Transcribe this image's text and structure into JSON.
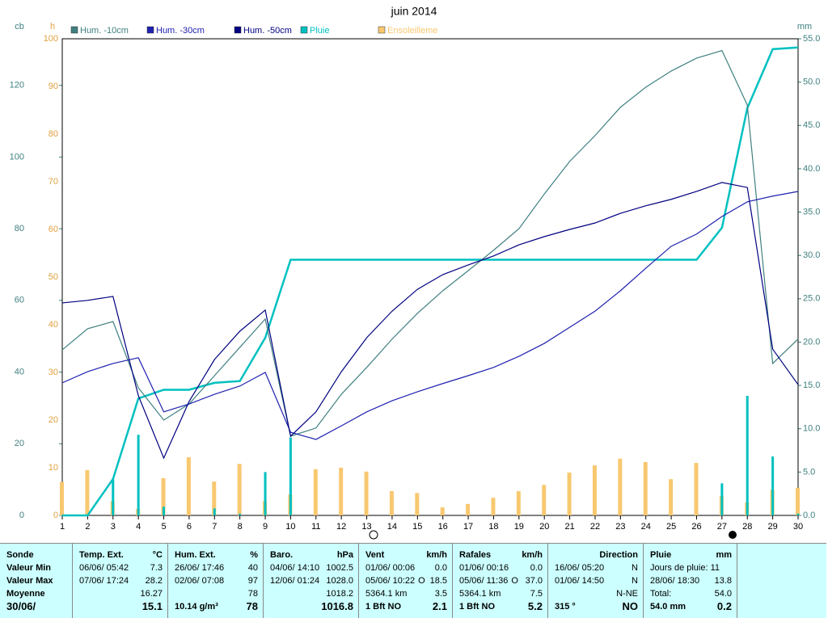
{
  "chart_data": {
    "type": "line",
    "title": "juin 2014",
    "y_unit": "cb",
    "h_unit": "h",
    "y2_unit": "mm",
    "x": [
      1,
      2,
      3,
      4,
      5,
      6,
      7,
      8,
      9,
      10,
      11,
      12,
      13,
      14,
      15,
      16,
      17,
      18,
      19,
      20,
      21,
      22,
      23,
      24,
      25,
      26,
      27,
      28,
      29,
      30
    ],
    "xlim": [
      1,
      30
    ],
    "xticks": [
      1,
      2,
      3,
      4,
      5,
      6,
      7,
      8,
      9,
      10,
      11,
      12,
      13,
      14,
      15,
      16,
      17,
      18,
      19,
      20,
      21,
      22,
      23,
      24,
      25,
      26,
      27,
      28,
      29,
      30
    ],
    "ylim": [
      0,
      133
    ],
    "yticks": [
      0,
      20,
      40,
      60,
      80,
      100,
      120
    ],
    "hlim": [
      0,
      100
    ],
    "hticks": [
      0,
      10,
      20,
      30,
      40,
      50,
      60,
      70,
      80,
      90,
      100
    ],
    "y2lim": [
      0,
      55
    ],
    "y2ticks": [
      {
        "value": 0,
        "label": "0.0"
      },
      {
        "value": 5,
        "label": "5.0"
      },
      {
        "value": 10,
        "label": "10.0"
      },
      {
        "value": 15,
        "label": "15.0"
      },
      {
        "value": 20,
        "label": "20.0"
      },
      {
        "value": 25,
        "label": "25.0"
      },
      {
        "value": 30,
        "label": "30.0"
      },
      {
        "value": 35,
        "label": "35.0"
      },
      {
        "value": 40,
        "label": "40.0"
      },
      {
        "value": 45,
        "label": "45.0"
      },
      {
        "value": 50,
        "label": "50.0"
      },
      {
        "value": 55,
        "label": "55.0"
      }
    ],
    "grid": true,
    "series": [
      {
        "name": "Hum. -10cm",
        "color": "#408080",
        "axis": "y",
        "kind": "line",
        "values": [
          46.2,
          52.1,
          54.1,
          35.6,
          26.6,
          31.1,
          39,
          46.9,
          54.8,
          22.1,
          24.4,
          33.8,
          41.3,
          49.2,
          56.4,
          62.7,
          68.3,
          74,
          80,
          89.7,
          98.8,
          106,
          113.9,
          119.5,
          124,
          127.6,
          129.7,
          114.5,
          42.4,
          49.2
        ]
      },
      {
        "name": "Hum. -30cm",
        "color": "#2020b0",
        "axis": "y",
        "kind": "line",
        "values": [
          37,
          40.1,
          42.4,
          44,
          28.9,
          31.1,
          33.8,
          36.1,
          39.9,
          23.2,
          21.2,
          25,
          28.9,
          32,
          34.5,
          36.8,
          39,
          41.3,
          44.4,
          48,
          52.5,
          57,
          62.7,
          69,
          75.1,
          78.5,
          83.4,
          87.5,
          89.1,
          90.4
        ]
      },
      {
        "name": "Hum. -50cm",
        "color": "#000080",
        "axis": "y",
        "kind": "line",
        "values": [
          59.3,
          60,
          61.1,
          33.4,
          16,
          31.8,
          43.5,
          51.4,
          57.3,
          22.1,
          28.9,
          40.1,
          49.6,
          57,
          63.1,
          67.2,
          69.9,
          72.4,
          75.5,
          77.8,
          79.8,
          81.6,
          84.3,
          86.4,
          88.2,
          90.4,
          92.9,
          91.5,
          46.4,
          36.5
        ]
      },
      {
        "name": "Pluie",
        "color": "#00c0c0",
        "axis": "y2",
        "kind": "rain",
        "values": [
          0,
          0,
          4.2,
          13.5,
          14.5,
          14.5,
          15.3,
          15.5,
          20.5,
          29.5,
          29.5,
          29.5,
          29.5,
          29.5,
          29.5,
          29.5,
          29.5,
          29.5,
          29.5,
          29.5,
          29.5,
          29.5,
          29.5,
          29.5,
          29.5,
          29.5,
          33.2,
          47.0,
          53.8,
          54.0
        ],
        "daily": [
          0,
          0,
          4.2,
          9.3,
          1.0,
          0,
          0.8,
          0.2,
          5.0,
          9.0,
          0,
          0,
          0,
          0,
          0,
          0,
          0,
          0,
          0,
          0,
          0,
          0,
          0,
          0,
          0,
          0,
          3.7,
          13.8,
          6.8,
          0.2
        ]
      },
      {
        "name": "Ensoleilleme",
        "color": "#f8c870",
        "axis": "h",
        "kind": "bar",
        "values": [
          7,
          9.5,
          3,
          1.4,
          7.8,
          12.2,
          7.1,
          10.8,
          3,
          4.4,
          9.7,
          10,
          9.2,
          5.1,
          4.7,
          1.7,
          2.4,
          3.7,
          5.1,
          6.4,
          9,
          10.5,
          11.9,
          11.2,
          7.6,
          11,
          4.1,
          2.7,
          5.4,
          5.8
        ]
      }
    ]
  },
  "table": {
    "columns": [
      {
        "header": [
          "Sonde"
        ],
        "rows": [
          [
            "Valeur Min"
          ],
          [
            "Valeur Max"
          ],
          [
            "Moyenne"
          ],
          [
            "30/06/"
          ]
        ]
      },
      {
        "header": [
          "Temp. Ext.",
          "°C"
        ],
        "rows": [
          [
            "06/06/ 05:42",
            "7.3"
          ],
          [
            "07/06/ 17:24",
            "28.2"
          ],
          [
            "16.27"
          ],
          [
            "15.1"
          ]
        ]
      },
      {
        "header": [
          "Hum. Ext.",
          "%"
        ],
        "rows": [
          [
            "26/06/ 17:46",
            "40"
          ],
          [
            "02/06/ 07:08",
            "97"
          ],
          [
            "78"
          ],
          [
            "10.14 g/m³",
            "78"
          ]
        ]
      },
      {
        "header": [
          "Baro.",
          "hPa"
        ],
        "rows": [
          [
            "04/06/ 14:10",
            "1002.5"
          ],
          [
            "12/06/ 01:24",
            "1028.0"
          ],
          [
            "1018.2"
          ],
          [
            "1016.8"
          ]
        ]
      },
      {
        "header": [
          "Vent",
          "km/h"
        ],
        "rows": [
          [
            "01/06/ 00:06",
            "0.0"
          ],
          [
            "05/06/ 10:22",
            "O",
            "18.5"
          ],
          [
            "5364.1 km",
            "3.5"
          ],
          [
            "1 Bft NO",
            "2.1"
          ]
        ]
      },
      {
        "header": [
          "Rafales",
          "km/h"
        ],
        "rows": [
          [
            "01/06/ 00:16",
            "0.0"
          ],
          [
            "05/06/ 11:36",
            "O",
            "37.0"
          ],
          [
            "5364.1 km",
            "7.5"
          ],
          [
            "1 Bft NO",
            "5.2"
          ]
        ]
      },
      {
        "header": [
          "Direction"
        ],
        "rows": [
          [
            "16/06/ 05:20",
            "N"
          ],
          [
            "01/06/ 14:50",
            "N"
          ],
          [
            "N-NE"
          ],
          [
            "315 °",
            "NO"
          ]
        ]
      },
      {
        "header": [
          "Pluie",
          "mm"
        ],
        "rows": [
          [
            "Jours de pluie: 11"
          ],
          [
            "28/06/ 18:30",
            "13.8"
          ],
          [
            "Total:",
            "54.0"
          ],
          [
            "54.0 mm",
            "0.2"
          ]
        ]
      }
    ]
  }
}
